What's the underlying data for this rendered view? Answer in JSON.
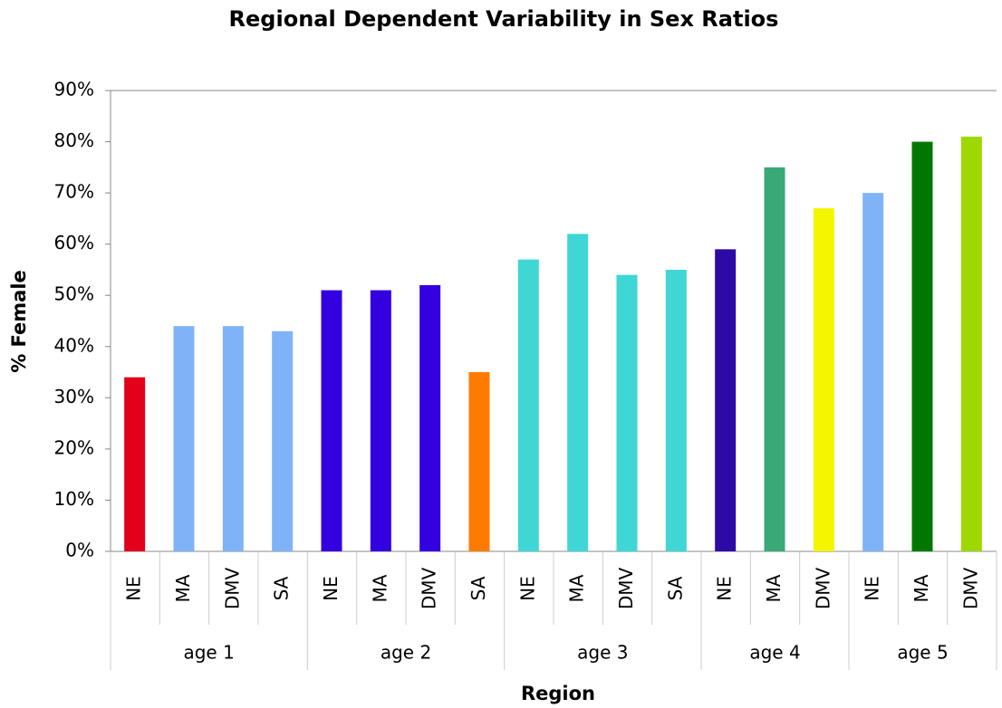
{
  "chart_data": {
    "type": "grouped-bar",
    "title": "Regional Dependent Variability in Sex Ratios",
    "x_label": "Region",
    "y_label": "% Female",
    "groups": [
      {
        "name": "age 1",
        "categories": [
          "NE",
          "MA",
          "DMV",
          "SA"
        ],
        "values": [
          34,
          44,
          44,
          43
        ],
        "colors": [
          "#e2001a",
          "#7fb3f8",
          "#7fb3f8",
          "#7fb3f8"
        ]
      },
      {
        "name": "age 2",
        "categories": [
          "NE",
          "MA",
          "DMV",
          "SA"
        ],
        "values": [
          51,
          51,
          52,
          35
        ],
        "colors": [
          "#3300e0",
          "#3300e0",
          "#3300e0",
          "#ff7b00"
        ]
      },
      {
        "name": "age 3",
        "categories": [
          "NE",
          "MA",
          "DMV",
          "SA"
        ],
        "values": [
          57,
          62,
          54,
          55
        ],
        "colors": [
          "#40d6d6",
          "#40d6d6",
          "#40d6d6",
          "#40d6d6"
        ]
      },
      {
        "name": "age 4",
        "categories": [
          "NE",
          "MA",
          "DMV"
        ],
        "values": [
          59,
          75,
          67
        ],
        "colors": [
          "#2d0aa5",
          "#3aa877",
          "#f5f500"
        ]
      },
      {
        "name": "age 5",
        "categories": [
          "NE",
          "MA",
          "DMV"
        ],
        "values": [
          70,
          80,
          81
        ],
        "colors": [
          "#7fb3f8",
          "#007800",
          "#9fd800"
        ]
      }
    ],
    "ylim": [
      0,
      90
    ],
    "yticks": [
      {
        "value": 0,
        "label": "0%"
      },
      {
        "value": 10,
        "label": "10%"
      },
      {
        "value": 20,
        "label": "20%"
      },
      {
        "value": 30,
        "label": "30%"
      },
      {
        "value": 40,
        "label": "40%"
      },
      {
        "value": 50,
        "label": "50%"
      },
      {
        "value": 60,
        "label": "60%"
      },
      {
        "value": 70,
        "label": "70%"
      },
      {
        "value": 80,
        "label": "80%"
      },
      {
        "value": 90,
        "label": "90%"
      }
    ],
    "grid": false
  }
}
